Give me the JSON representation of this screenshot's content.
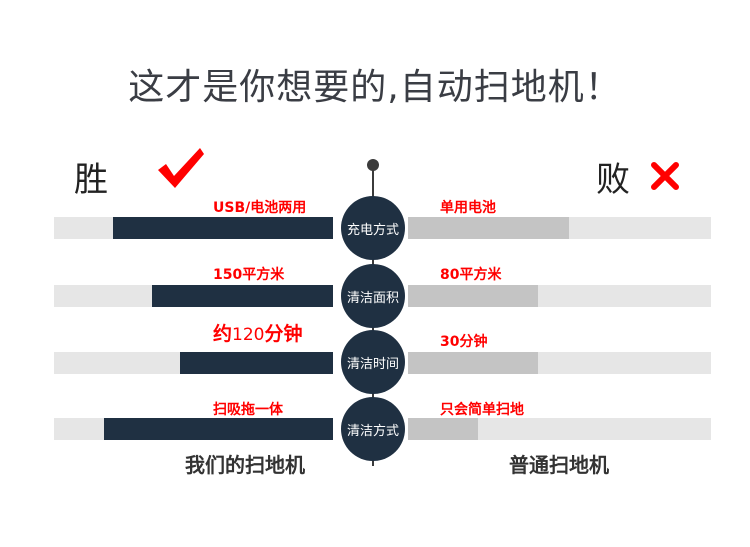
{
  "title": "这才是你想要的,自动扫地机！",
  "win_label": "胜",
  "lose_label": "败",
  "icons": {
    "win": "checkmark-icon",
    "lose": "cross-icon"
  },
  "colors": {
    "dark_bar": "#1f3042",
    "light_bar": "#c4c4c4",
    "track": "#e6e6e6",
    "label": "#ff0000"
  },
  "rows": [
    {
      "category": "充电方式",
      "ours": "USB/电池两用",
      "ours_level": 0.79,
      "theirs": "单用电池",
      "theirs_level": 0.53
    },
    {
      "category": "清洁面积",
      "ours": "150平方米",
      "ours_level": 0.65,
      "theirs": "80平方米",
      "theirs_level": 0.43
    },
    {
      "category": "清洁时间",
      "ours_prefix": "约",
      "ours_number": "120",
      "ours_suffix": "分钟",
      "ours_level": 0.55,
      "theirs": "30分钟",
      "theirs_level": 0.43
    },
    {
      "category": "清洁方式",
      "ours": "扫吸拖一体",
      "ours_level": 0.82,
      "theirs": "只会简单扫地",
      "theirs_level": 0.23
    }
  ],
  "footer": {
    "ours": "我们的扫地机",
    "theirs": "普通扫地机"
  }
}
